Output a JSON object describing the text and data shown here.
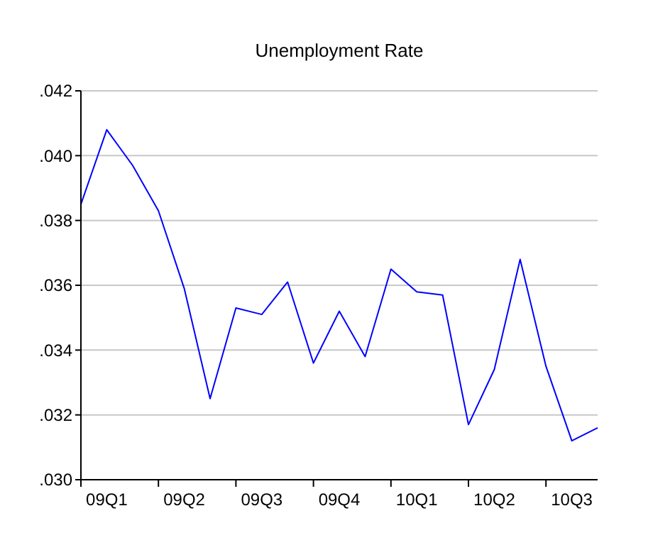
{
  "chart_data": {
    "type": "line",
    "title": "Unemployment Rate",
    "categories": [
      null,
      "09Q1",
      null,
      null,
      "09Q2",
      null,
      null,
      "09Q3",
      null,
      null,
      "09Q4",
      null,
      null,
      "10Q1",
      null,
      null,
      "10Q2",
      null,
      null,
      "10Q3",
      null
    ],
    "series": [
      {
        "color": "#0000ff",
        "values": [
          0.0385,
          0.0408,
          0.0397,
          0.0383,
          0.0359,
          0.0325,
          0.0353,
          0.0351,
          0.0361,
          0.0336,
          0.0352,
          0.0338,
          0.0365,
          0.0358,
          0.0357,
          0.0317,
          0.0334,
          0.0368,
          0.0335,
          0.0312,
          0.0316
        ]
      }
    ],
    "ylim": [
      0.03,
      0.042
    ],
    "yticks": [
      {
        "value": 0.03,
        "label": ".030"
      },
      {
        "value": 0.032,
        "label": ".032"
      },
      {
        "value": 0.034,
        "label": ".034"
      },
      {
        "value": 0.036,
        "label": ".036"
      },
      {
        "value": 0.038,
        "label": ".038"
      },
      {
        "value": 0.04,
        "label": ".040"
      },
      {
        "value": 0.042,
        "label": ".042"
      }
    ],
    "grid": "y",
    "marker": "none",
    "line_style": "solid"
  }
}
